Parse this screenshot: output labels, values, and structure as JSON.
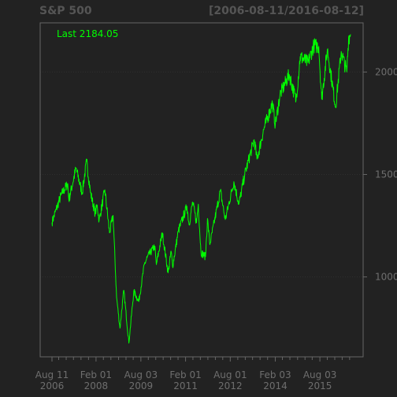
{
  "header": {
    "title": "S&P 500",
    "date_range": "[2006-08-11/2016-08-12]"
  },
  "colors": {
    "background": "#222222",
    "frame": "#666666",
    "text": "#555555",
    "tick_text": "#6e6e6e",
    "grid": "#2f2f2f",
    "line": "#00ff00"
  },
  "chart_data": {
    "type": "line",
    "title": "S&P 500",
    "subtitle": "[2006-08-11/2016-08-12]",
    "annotation": "Last 2184.05",
    "grid": true,
    "x_range": [
      "2006-08-11",
      "2016-08-12"
    ],
    "ylim": [
      610,
      2240
    ],
    "y_ticks": [
      1000,
      1500,
      2000
    ],
    "y_tick_labels": [
      "1000",
      "1500",
      "2000"
    ],
    "x_ticks": [
      {
        "date": "2006-08-11",
        "label": [
          "Aug 11",
          "2006"
        ]
      },
      {
        "date": "2008-02-01",
        "label": [
          "Feb 01",
          "2008"
        ]
      },
      {
        "date": "2009-08-03",
        "label": [
          "Aug 03",
          "2009"
        ]
      },
      {
        "date": "2011-02-01",
        "label": [
          "Feb 01",
          "2011"
        ]
      },
      {
        "date": "2012-08-01",
        "label": [
          "Aug 01",
          "2012"
        ]
      },
      {
        "date": "2014-02-03",
        "label": [
          "Feb 03",
          "2014"
        ]
      },
      {
        "date": "2015-08-03",
        "label": [
          "Aug 03",
          "2015"
        ]
      }
    ],
    "minor_x_ticks": [
      "2006-11-01",
      "2007-02-01",
      "2007-05-01",
      "2007-08-01",
      "2007-11-01",
      "2008-05-01",
      "2008-08-01",
      "2008-11-03",
      "2009-02-02",
      "2009-05-01",
      "2009-11-02",
      "2010-02-01",
      "2010-05-03",
      "2010-08-02",
      "2010-11-01",
      "2011-05-02",
      "2011-08-01",
      "2011-11-01",
      "2012-02-01",
      "2012-05-01",
      "2012-11-01",
      "2013-02-01",
      "2013-05-01",
      "2013-08-01",
      "2013-11-01",
      "2014-05-01",
      "2014-08-01",
      "2014-11-03",
      "2015-02-02",
      "2015-05-01",
      "2015-11-02",
      "2016-02-01",
      "2016-05-02",
      "2016-08-01"
    ],
    "series": [
      {
        "values": [
          [
            "2006-08-11",
            1266
          ],
          [
            "2006-10-02",
            1330
          ],
          [
            "2006-12-01",
            1400
          ],
          [
            "2007-02-20",
            1455
          ],
          [
            "2007-03-05",
            1375
          ],
          [
            "2007-06-01",
            1530
          ],
          [
            "2007-08-15",
            1410
          ],
          [
            "2007-10-09",
            1565
          ],
          [
            "2007-11-26",
            1410
          ],
          [
            "2008-01-22",
            1310
          ],
          [
            "2008-02-15",
            1350
          ],
          [
            "2008-03-10",
            1275
          ],
          [
            "2008-05-19",
            1425
          ],
          [
            "2008-07-15",
            1215
          ],
          [
            "2008-08-28",
            1300
          ],
          [
            "2008-10-10",
            900
          ],
          [
            "2008-11-20",
            750
          ],
          [
            "2009-01-06",
            935
          ],
          [
            "2009-03-09",
            677
          ],
          [
            "2009-05-08",
            930
          ],
          [
            "2009-07-08",
            880
          ],
          [
            "2009-09-15",
            1060
          ],
          [
            "2009-10-19",
            1095
          ],
          [
            "2010-01-19",
            1150
          ],
          [
            "2010-02-08",
            1060
          ],
          [
            "2010-04-23",
            1215
          ],
          [
            "2010-07-02",
            1020
          ],
          [
            "2010-08-09",
            1125
          ],
          [
            "2010-08-26",
            1050
          ],
          [
            "2010-11-05",
            1225
          ],
          [
            "2011-02-18",
            1345
          ],
          [
            "2011-03-16",
            1255
          ],
          [
            "2011-04-29",
            1365
          ],
          [
            "2011-06-15",
            1265
          ],
          [
            "2011-07-07",
            1355
          ],
          [
            "2011-08-08",
            1120
          ],
          [
            "2011-10-03",
            1099
          ],
          [
            "2011-10-27",
            1285
          ],
          [
            "2011-11-25",
            1158
          ],
          [
            "2012-04-02",
            1420
          ],
          [
            "2012-06-01",
            1280
          ],
          [
            "2012-09-14",
            1465
          ],
          [
            "2012-11-15",
            1355
          ],
          [
            "2013-01-25",
            1500
          ],
          [
            "2013-05-21",
            1670
          ],
          [
            "2013-06-24",
            1575
          ],
          [
            "2013-09-18",
            1725
          ],
          [
            "2013-12-31",
            1848
          ],
          [
            "2014-02-03",
            1742
          ],
          [
            "2014-04-02",
            1890
          ],
          [
            "2014-07-24",
            1988
          ],
          [
            "2014-10-15",
            1862
          ],
          [
            "2014-12-05",
            2075
          ],
          [
            "2015-03-10",
            2045
          ],
          [
            "2015-05-21",
            2130
          ],
          [
            "2015-07-20",
            2125
          ],
          [
            "2015-08-25",
            1868
          ],
          [
            "2015-11-03",
            2110
          ],
          [
            "2016-02-11",
            1829
          ],
          [
            "2016-04-20",
            2100
          ],
          [
            "2016-06-27",
            2000
          ],
          [
            "2016-07-20",
            2170
          ],
          [
            "2016-08-12",
            2184
          ]
        ]
      }
    ]
  }
}
